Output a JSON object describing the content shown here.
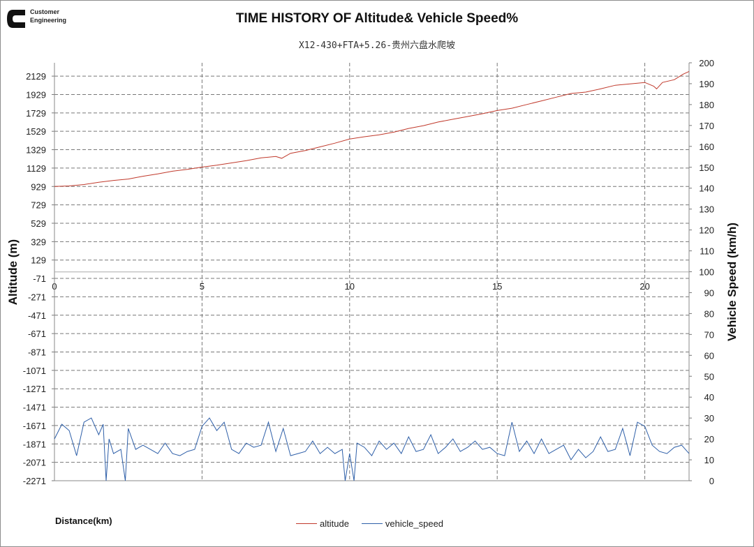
{
  "logo": {
    "text_line1": "Customer",
    "text_line2": "Engineering"
  },
  "chart_data": {
    "type": "line",
    "title": "TIME HISTORY OF Altitude& Vehicle Speed%",
    "subtitle": "X12-430+FTA+5.26-贵州六盘水爬坡",
    "xlabel": "Distance(km)",
    "ylabel": "Altitude (m)",
    "y2label": "Vehicle Speed (km/h)",
    "xlim": [
      0,
      21.5
    ],
    "ylim": [
      -2271,
      2274
    ],
    "y2lim": [
      0,
      200
    ],
    "xticks": [
      "0",
      "5",
      "10",
      "15",
      "20"
    ],
    "yticks": [
      "2129",
      "1929",
      "1729",
      "1529",
      "1329",
      "1129",
      "929",
      "729",
      "529",
      "329",
      "129",
      "-71",
      "-271",
      "-471",
      "-671",
      "-871",
      "-1071",
      "-1271",
      "-1471",
      "-1671",
      "-1871",
      "-2071",
      "-2271"
    ],
    "y2ticks": [
      "200",
      "190",
      "180",
      "170",
      "160",
      "150",
      "140",
      "130",
      "120",
      "110",
      "100",
      "90",
      "80",
      "70",
      "60",
      "50",
      "40",
      "30",
      "20",
      "10",
      "0"
    ],
    "grid": true,
    "legend_position": "bottom",
    "series": [
      {
        "name": "altitude",
        "axis": "left",
        "color": "#c0392b",
        "points": [
          [
            0,
            929
          ],
          [
            0.5,
            935
          ],
          [
            1,
            950
          ],
          [
            1.5,
            975
          ],
          [
            2,
            995
          ],
          [
            2.5,
            1010
          ],
          [
            3,
            1040
          ],
          [
            3.5,
            1065
          ],
          [
            4,
            1095
          ],
          [
            4.5,
            1115
          ],
          [
            5,
            1140
          ],
          [
            5.5,
            1160
          ],
          [
            6,
            1185
          ],
          [
            6.5,
            1210
          ],
          [
            7,
            1240
          ],
          [
            7.5,
            1255
          ],
          [
            7.7,
            1235
          ],
          [
            8,
            1290
          ],
          [
            8.5,
            1320
          ],
          [
            9,
            1360
          ],
          [
            9.5,
            1400
          ],
          [
            10,
            1445
          ],
          [
            10.5,
            1470
          ],
          [
            11,
            1490
          ],
          [
            11.5,
            1520
          ],
          [
            12,
            1560
          ],
          [
            12.5,
            1590
          ],
          [
            13,
            1630
          ],
          [
            13.5,
            1660
          ],
          [
            14,
            1690
          ],
          [
            14.5,
            1720
          ],
          [
            15,
            1755
          ],
          [
            15.5,
            1780
          ],
          [
            16,
            1820
          ],
          [
            16.5,
            1860
          ],
          [
            17,
            1900
          ],
          [
            17.5,
            1940
          ],
          [
            18,
            1955
          ],
          [
            18.5,
            1990
          ],
          [
            19,
            2030
          ],
          [
            19.5,
            2045
          ],
          [
            20,
            2060
          ],
          [
            20.3,
            2020
          ],
          [
            20.4,
            1990
          ],
          [
            20.6,
            2060
          ],
          [
            21,
            2090
          ],
          [
            21.3,
            2150
          ],
          [
            21.5,
            2180
          ]
        ]
      },
      {
        "name": "vehicle_speed",
        "axis": "right",
        "color": "#2e5fa8",
        "points": [
          [
            0,
            20
          ],
          [
            0.25,
            27
          ],
          [
            0.5,
            24
          ],
          [
            0.75,
            12
          ],
          [
            1,
            28
          ],
          [
            1.25,
            30
          ],
          [
            1.5,
            22
          ],
          [
            1.65,
            27
          ],
          [
            1.75,
            0
          ],
          [
            1.85,
            20
          ],
          [
            2,
            13
          ],
          [
            2.25,
            15
          ],
          [
            2.4,
            0
          ],
          [
            2.5,
            25
          ],
          [
            2.75,
            15
          ],
          [
            3,
            17
          ],
          [
            3.25,
            15
          ],
          [
            3.5,
            13
          ],
          [
            3.75,
            18
          ],
          [
            4,
            13
          ],
          [
            4.25,
            12
          ],
          [
            4.5,
            14
          ],
          [
            4.75,
            15
          ],
          [
            5,
            26
          ],
          [
            5.25,
            30
          ],
          [
            5.5,
            24
          ],
          [
            5.75,
            28
          ],
          [
            6,
            15
          ],
          [
            6.25,
            13
          ],
          [
            6.5,
            18
          ],
          [
            6.75,
            16
          ],
          [
            7,
            17
          ],
          [
            7.25,
            28
          ],
          [
            7.5,
            14
          ],
          [
            7.75,
            25
          ],
          [
            8,
            12
          ],
          [
            8.25,
            13
          ],
          [
            8.5,
            14
          ],
          [
            8.75,
            19
          ],
          [
            9,
            13
          ],
          [
            9.25,
            16
          ],
          [
            9.5,
            13
          ],
          [
            9.75,
            15
          ],
          [
            9.85,
            0
          ],
          [
            10,
            13
          ],
          [
            10.15,
            0
          ],
          [
            10.25,
            18
          ],
          [
            10.5,
            16
          ],
          [
            10.75,
            12
          ],
          [
            11,
            19
          ],
          [
            11.25,
            15
          ],
          [
            11.5,
            18
          ],
          [
            11.75,
            13
          ],
          [
            12,
            21
          ],
          [
            12.25,
            14
          ],
          [
            12.5,
            15
          ],
          [
            12.75,
            22
          ],
          [
            13,
            13
          ],
          [
            13.25,
            16
          ],
          [
            13.5,
            20
          ],
          [
            13.75,
            14
          ],
          [
            14,
            16
          ],
          [
            14.25,
            19
          ],
          [
            14.5,
            15
          ],
          [
            14.75,
            16
          ],
          [
            15,
            13
          ],
          [
            15.25,
            12
          ],
          [
            15.5,
            28
          ],
          [
            15.75,
            14
          ],
          [
            16,
            19
          ],
          [
            16.25,
            13
          ],
          [
            16.5,
            20
          ],
          [
            16.75,
            13
          ],
          [
            17,
            15
          ],
          [
            17.25,
            17
          ],
          [
            17.5,
            10
          ],
          [
            17.75,
            15
          ],
          [
            18,
            11
          ],
          [
            18.25,
            14
          ],
          [
            18.5,
            21
          ],
          [
            18.75,
            14
          ],
          [
            19,
            15
          ],
          [
            19.25,
            25
          ],
          [
            19.5,
            12
          ],
          [
            19.75,
            28
          ],
          [
            20,
            26
          ],
          [
            20.25,
            17
          ],
          [
            20.5,
            14
          ],
          [
            20.75,
            13
          ],
          [
            21,
            16
          ],
          [
            21.25,
            17
          ],
          [
            21.5,
            13
          ]
        ]
      }
    ]
  }
}
